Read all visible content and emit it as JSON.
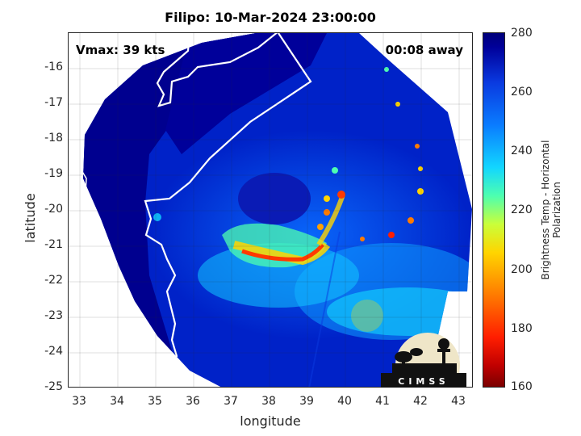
{
  "title": "Filipo: 10-Mar-2024 23:00:00",
  "annotations": {
    "vmax": "Vmax: 39 kts",
    "away": "00:08 away"
  },
  "axes": {
    "xlabel": "longitude",
    "ylabel": "latitude",
    "xticks": [
      "33",
      "34",
      "35",
      "36",
      "37",
      "38",
      "39",
      "40",
      "41",
      "42",
      "43"
    ],
    "yticks": [
      "-16",
      "-17",
      "-18",
      "-19",
      "-20",
      "-21",
      "-22",
      "-23",
      "-24",
      "-25"
    ],
    "xrange": [
      32.7,
      43.35
    ],
    "yrange": [
      -25,
      -15
    ]
  },
  "colorbar": {
    "label": "Brightness Temp - Horizontal Polarization",
    "ticks": [
      "280",
      "260",
      "240",
      "220",
      "200",
      "180",
      "160"
    ],
    "range": [
      160,
      280
    ]
  },
  "logo_text": "CIMSS",
  "colors": {
    "cold_background": "#00008f",
    "eye_wall": "#ff3a00",
    "coastline": "#ffffff"
  }
}
